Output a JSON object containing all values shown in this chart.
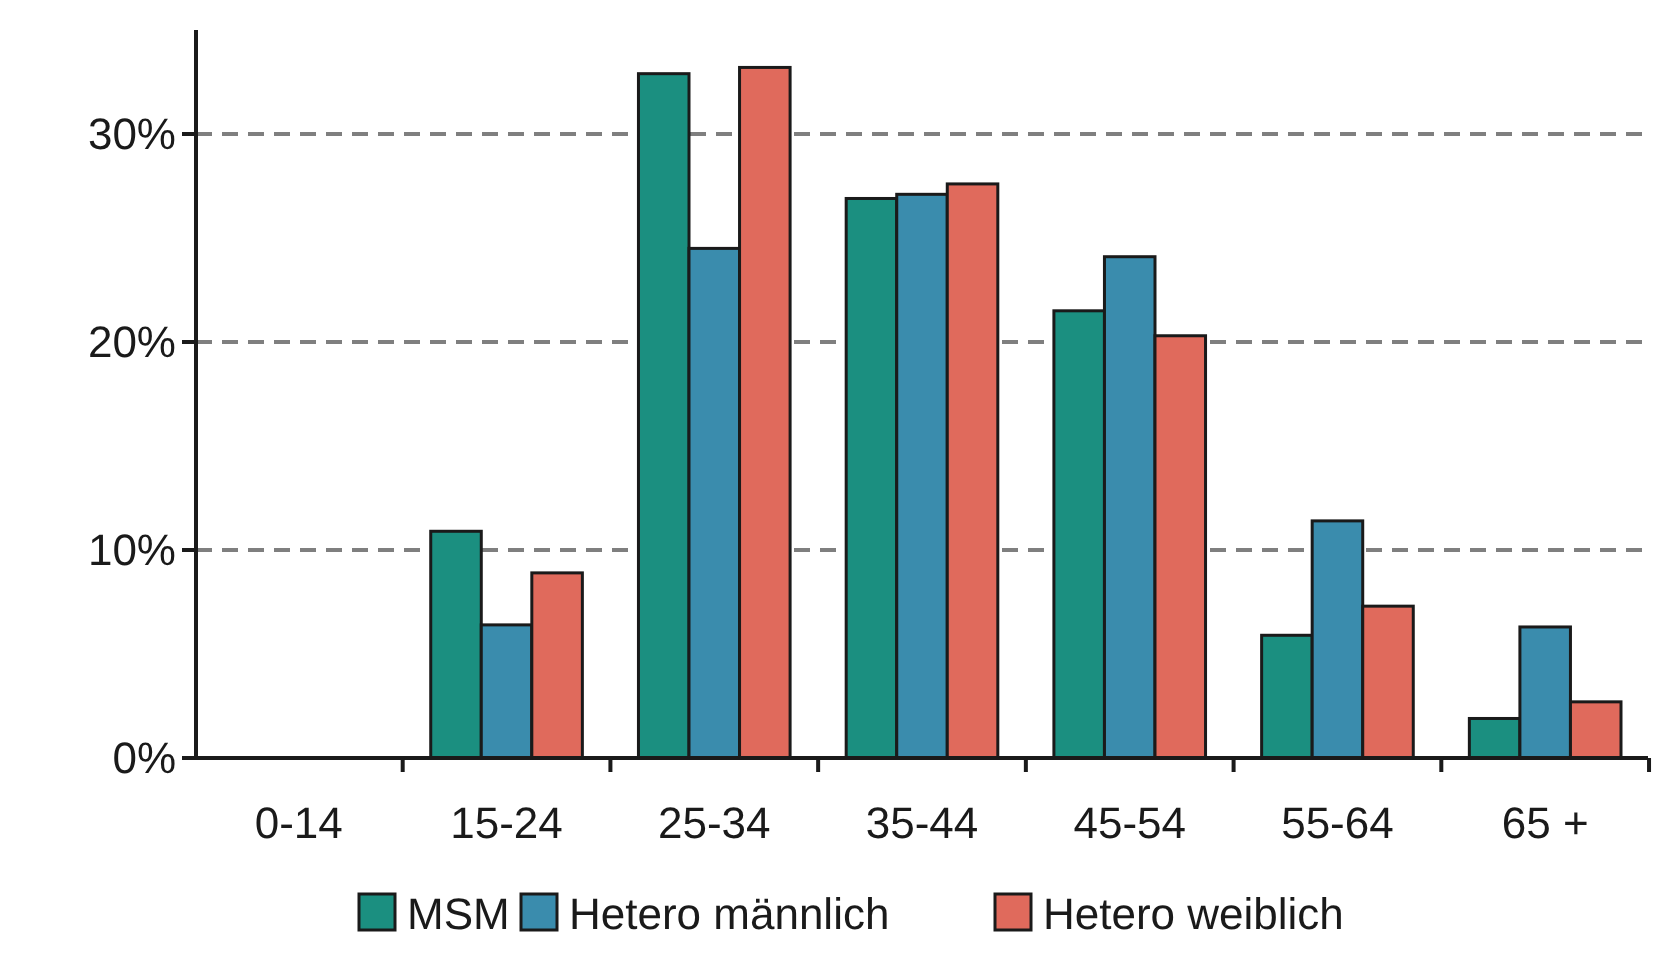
{
  "chart_data": {
    "type": "bar",
    "categories": [
      "0-14",
      "15-24",
      "25-34",
      "35-44",
      "45-54",
      "55-64",
      "65 +"
    ],
    "series": [
      {
        "name": "MSM",
        "color": "#1b8f80",
        "values": [
          0,
          10.9,
          32.9,
          26.9,
          21.5,
          5.9,
          1.9
        ]
      },
      {
        "name": "Hetero männlich",
        "color": "#3a8cad",
        "values": [
          0,
          6.4,
          24.5,
          27.1,
          24.1,
          11.4,
          6.3
        ]
      },
      {
        "name": "Hetero weiblich",
        "color": "#e06a5c",
        "values": [
          0,
          8.9,
          33.2,
          27.6,
          20.3,
          7.3,
          2.7
        ]
      }
    ],
    "ylim": [
      0,
      35
    ],
    "yticks": [
      {
        "value": 0,
        "label": "0%"
      },
      {
        "value": 10,
        "label": "10%"
      },
      {
        "value": 20,
        "label": "20%"
      },
      {
        "value": 30,
        "label": "30%"
      }
    ],
    "grid": "y",
    "legend": "bottom"
  }
}
